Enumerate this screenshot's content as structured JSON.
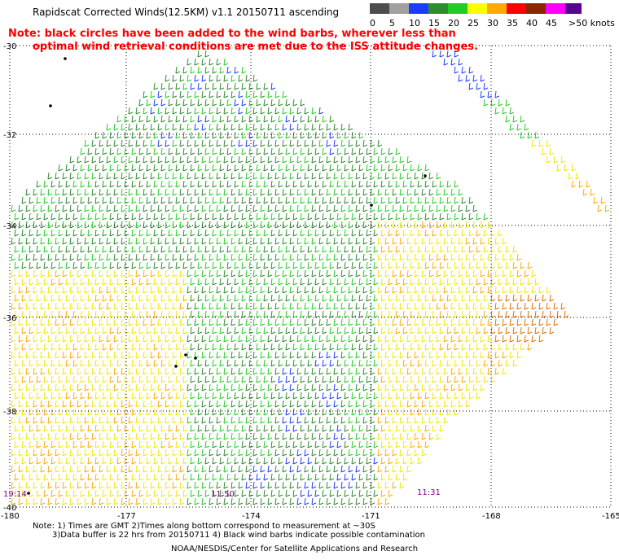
{
  "header": {
    "title": "Rapidscat Corrected Winds(12.5KM) v1.1 20150711 ascending",
    "note_line1": "Note: black circles have been added to the wind barbs, wherever less than",
    "note_line2": "optimal wind retrieval conditions are met due to the ISS attitude changes."
  },
  "legend": {
    "unit": "knots",
    "bins": [
      {
        "label": "0",
        "color": "#4d4d4d"
      },
      {
        "label": "5",
        "color": "#a0a0a0"
      },
      {
        "label": "10",
        "color": "#1e3cff"
      },
      {
        "label": "15",
        "color": "#2e8b2e"
      },
      {
        "label": "20",
        "color": "#22cc22"
      },
      {
        "label": "25",
        "color": "#ffff00"
      },
      {
        "label": "30",
        "color": "#ffaa00"
      },
      {
        "label": "35",
        "color": "#ff0000"
      },
      {
        "label": "40",
        "color": "#8b2500"
      },
      {
        "label": "45",
        "color": "#ff00ff"
      },
      {
        "label": ">50",
        "color": "#5a0090"
      }
    ],
    "bar_labels": [
      "0",
      "5",
      "10",
      "15",
      "20",
      "25",
      "30",
      "35",
      "40",
      "45",
      ">50 knots"
    ]
  },
  "map": {
    "lat_labels": [
      "-30",
      "-32",
      "-34",
      "-36",
      "-38",
      "-40"
    ],
    "lon_labels": [
      "-180",
      "-177",
      "-174",
      "-171",
      "-168",
      "-165"
    ],
    "time_labels": [
      {
        "text": "19:14",
        "color": "#800080"
      },
      {
        "text": "11:50",
        "color": "#800080"
      },
      {
        "text": "11:31",
        "color": "#800080"
      }
    ],
    "colors": {
      "low_5_10": "#1e3cff",
      "mid_10_15": "#2e8b2e",
      "mid_15_20": "#22cc22",
      "high_20_25": "#f2e600",
      "high_25_30": "#ffaa00",
      "high_30_35": "#e07000",
      "grid": "#000000"
    }
  },
  "footer": {
    "line1": "Note: 1) Times are GMT 2)Times along bottom correspond to measurement at ~30S",
    "line2": "3)Data buffer is 22 hrs from 20150711 4) Black wind barbs indicate possible contamination",
    "credit": "NOAA/NESDIS/Center for Satellite Applications and Research"
  }
}
